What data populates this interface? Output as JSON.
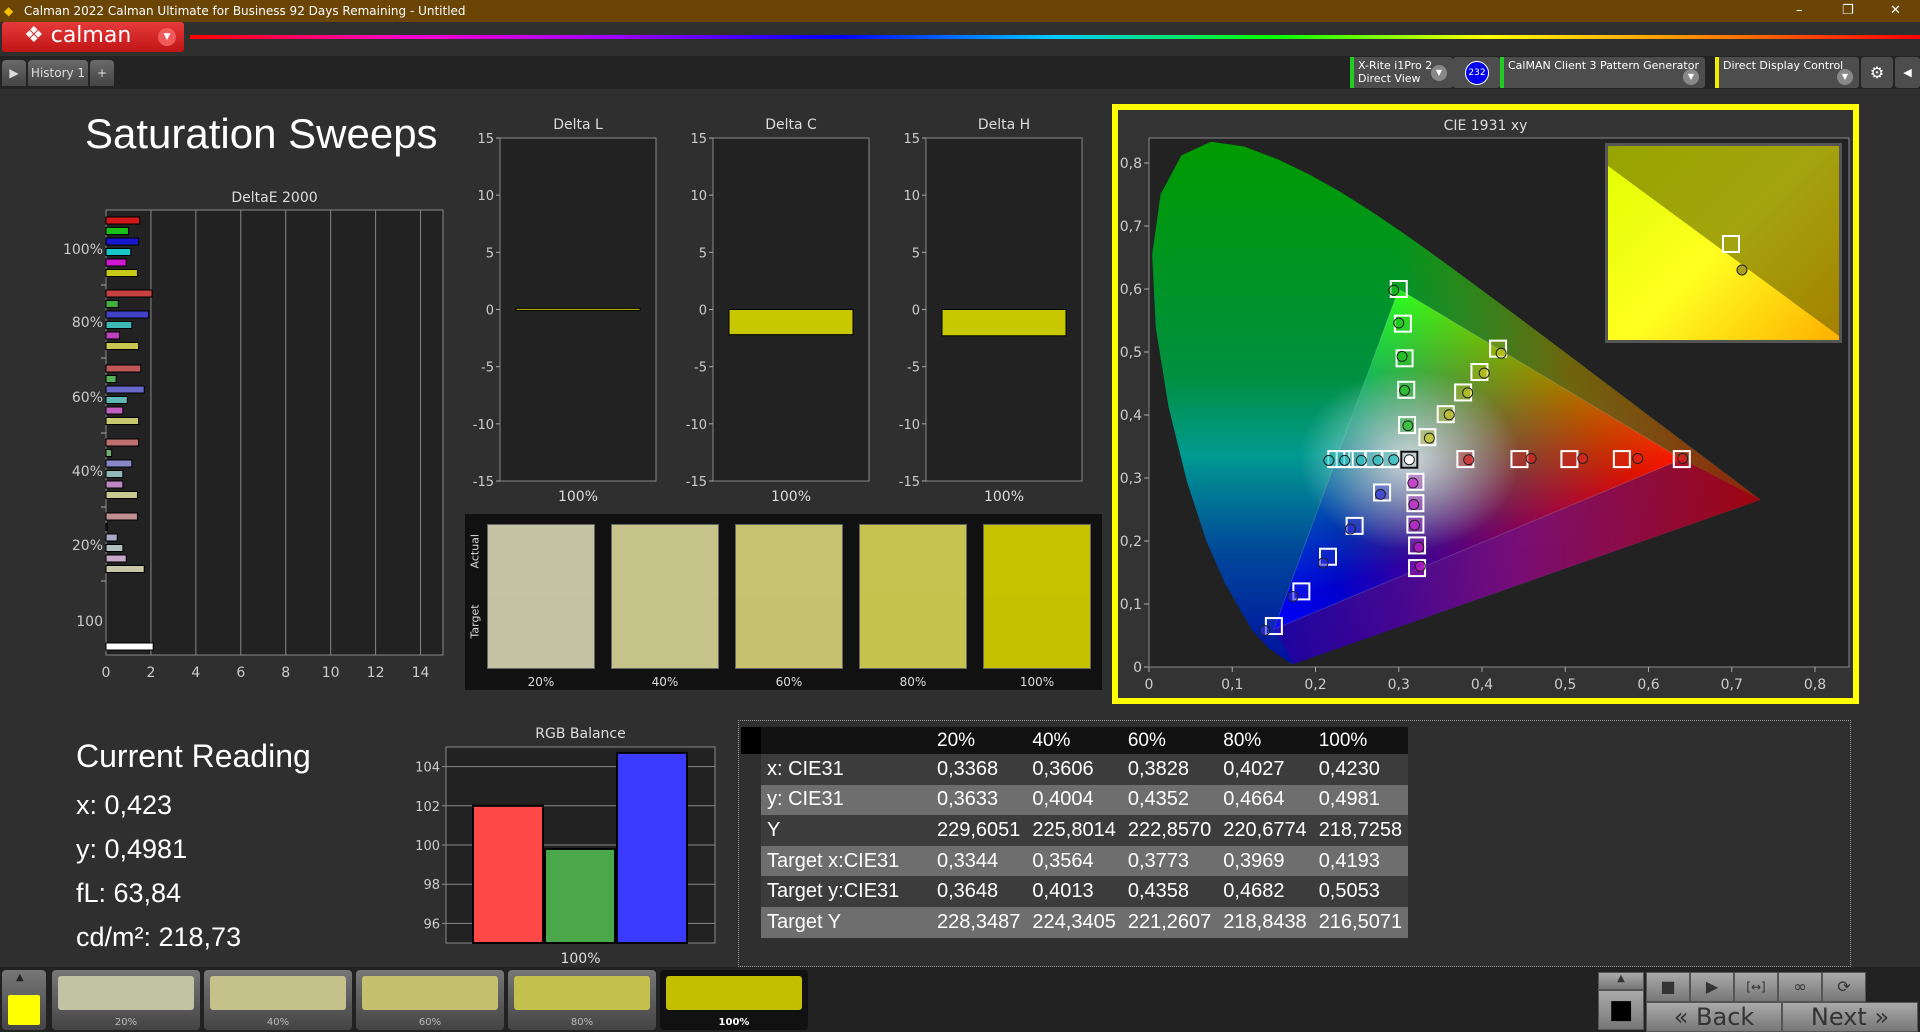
{
  "window": {
    "title": "Calman 2022 Calman Ultimate for Business 92 Days Remaining  - Untitled",
    "minimize": "–",
    "maximize": "❐",
    "close": "✕"
  },
  "logo": {
    "text": "calman"
  },
  "tabs": [
    {
      "label": "History 1"
    }
  ],
  "devices": {
    "meter": "X-Rite i1Pro 2",
    "meter_mode": "Direct View",
    "meter_badge": "232",
    "pattern": "CalMAN Client 3 Pattern Generator",
    "display": "Direct Display Control",
    "status_colors": {
      "meter": "#22cc22",
      "pattern": "#22cc22",
      "display": "#eeee00"
    }
  },
  "page_title": "Saturation Sweeps",
  "deltae_chart": {
    "title": "DeltaE 2000",
    "xlim": [
      0,
      15
    ],
    "xticks": [
      "0",
      "2",
      "4",
      "6",
      "8",
      "10",
      "12",
      "14"
    ],
    "groups": [
      {
        "label": "100%",
        "values": [
          1.5,
          1.0,
          1.45,
          1.1,
          0.9,
          1.4
        ],
        "colors": [
          "#d01818",
          "#18c018",
          "#1818d0",
          "#18c8c8",
          "#d018d0",
          "#c8c818"
        ]
      },
      {
        "label": "80%",
        "values": [
          2.05,
          0.55,
          1.9,
          1.15,
          0.6,
          1.45
        ],
        "colors": [
          "#c84040",
          "#40b040",
          "#4040c8",
          "#40b8b8",
          "#c040c0",
          "#c8c850"
        ]
      },
      {
        "label": "60%",
        "values": [
          1.55,
          0.45,
          1.7,
          0.95,
          0.75,
          1.45
        ],
        "colors": [
          "#c05858",
          "#58b058",
          "#6868c8",
          "#60b8b8",
          "#c060c0",
          "#c8c870"
        ]
      },
      {
        "label": "40%",
        "values": [
          1.45,
          0.25,
          1.15,
          0.75,
          0.75,
          1.4
        ],
        "colors": [
          "#c07070",
          "#70b070",
          "#8888c8",
          "#90b8b8",
          "#c088c0",
          "#c8c890"
        ]
      },
      {
        "label": "20%",
        "values": [
          1.4,
          0.05,
          0.5,
          0.75,
          0.9,
          1.7
        ],
        "colors": [
          "#c09090",
          "#90b090",
          "#a8a8c8",
          "#b0c0c0",
          "#c8a8c8",
          "#c8c8a8"
        ]
      },
      {
        "label": "100",
        "values": [
          2.1
        ],
        "colors": [
          "#ffffff"
        ]
      }
    ]
  },
  "delta_charts": [
    {
      "title": "Delta L",
      "value": 0.1,
      "category": "100%"
    },
    {
      "title": "Delta C",
      "value": -2.2,
      "category": "100%"
    },
    {
      "title": "Delta H",
      "value": -2.3,
      "category": "100%"
    }
  ],
  "delta_axis": {
    "ylim": [
      -15,
      15
    ],
    "yticks": [
      "15",
      "10",
      "5",
      "0",
      "-5",
      "-10",
      "-15"
    ],
    "bar_color": "#c8c800"
  },
  "swatches": {
    "actual_label": "Actual",
    "target_label": "Target",
    "items": [
      {
        "label": "20%",
        "actual": "#c4c3a4",
        "target": "#c3c2a3"
      },
      {
        "label": "40%",
        "actual": "#c6c38b",
        "target": "#c5c28a"
      },
      {
        "label": "60%",
        "actual": "#c6c270",
        "target": "#c5c16e"
      },
      {
        "label": "80%",
        "actual": "#c7c350",
        "target": "#c6c24e"
      },
      {
        "label": "100%",
        "actual": "#c6c200",
        "target": "#c5c100"
      }
    ]
  },
  "chart_data": {
    "type": "scatter",
    "title": "CIE 1931 xy",
    "xlim": [
      0,
      0.8
    ],
    "ylim": [
      0,
      0.8
    ],
    "xticks": [
      "0",
      "0,1",
      "0,2",
      "0,3",
      "0,4",
      "0,5",
      "0,6",
      "0,7",
      "0,8"
    ],
    "yticks": [
      "0",
      "0,1",
      "0,2",
      "0,3",
      "0,4",
      "0,5",
      "0,6",
      "0,7",
      "0,8"
    ],
    "gamut": {
      "red": [
        0.64,
        0.33
      ],
      "green": [
        0.3,
        0.6
      ],
      "blue": [
        0.15,
        0.06
      ],
      "white": [
        0.3127,
        0.329
      ]
    },
    "sweeps": [
      {
        "color": "#e02020",
        "targets": [
          [
            0.38,
            0.33
          ],
          [
            0.445,
            0.33
          ],
          [
            0.505,
            0.33
          ],
          [
            0.568,
            0.33
          ],
          [
            0.64,
            0.33
          ]
        ],
        "measured": [
          [
            0.384,
            0.329
          ],
          [
            0.459,
            0.331
          ],
          [
            0.521,
            0.331
          ],
          [
            0.587,
            0.331
          ],
          [
            0.641,
            0.331
          ]
        ]
      },
      {
        "color": "#20c020",
        "targets": [
          [
            0.31,
            0.384
          ],
          [
            0.309,
            0.44
          ],
          [
            0.307,
            0.49
          ],
          [
            0.305,
            0.545
          ],
          [
            0.3,
            0.6
          ]
        ],
        "measured": [
          [
            0.311,
            0.383
          ],
          [
            0.307,
            0.439
          ],
          [
            0.304,
            0.493
          ],
          [
            0.3,
            0.546
          ],
          [
            0.294,
            0.598
          ]
        ]
      },
      {
        "color": "#3030e0",
        "targets": [
          [
            0.28,
            0.277
          ],
          [
            0.247,
            0.224
          ],
          [
            0.215,
            0.175
          ],
          [
            0.183,
            0.12
          ],
          [
            0.15,
            0.065
          ]
        ],
        "measured": [
          [
            0.278,
            0.274
          ],
          [
            0.242,
            0.219
          ],
          [
            0.209,
            0.165
          ],
          [
            0.173,
            0.112
          ],
          [
            0.139,
            0.058
          ]
        ]
      },
      {
        "color": "#20c0c0",
        "targets": [
          [
            0.29,
            0.33
          ],
          [
            0.27,
            0.33
          ],
          [
            0.25,
            0.33
          ],
          [
            0.235,
            0.33
          ],
          [
            0.225,
            0.33
          ]
        ],
        "measured": [
          [
            0.294,
            0.329
          ],
          [
            0.275,
            0.328
          ],
          [
            0.255,
            0.328
          ],
          [
            0.235,
            0.328
          ],
          [
            0.216,
            0.328
          ]
        ]
      },
      {
        "color": "#d020d0",
        "targets": [
          [
            0.32,
            0.294
          ],
          [
            0.32,
            0.26
          ],
          [
            0.32,
            0.226
          ],
          [
            0.322,
            0.193
          ],
          [
            0.322,
            0.157
          ]
        ],
        "measured": [
          [
            0.317,
            0.292
          ],
          [
            0.318,
            0.258
          ],
          [
            0.319,
            0.225
          ],
          [
            0.324,
            0.19
          ],
          [
            0.326,
            0.16
          ]
        ]
      },
      {
        "color": "#c8c820",
        "targets": [
          [
            0.3344,
            0.3648
          ],
          [
            0.3564,
            0.4013
          ],
          [
            0.3773,
            0.4358
          ],
          [
            0.3969,
            0.4682
          ],
          [
            0.4193,
            0.5053
          ]
        ],
        "measured": [
          [
            0.3368,
            0.3633
          ],
          [
            0.3606,
            0.4004
          ],
          [
            0.3828,
            0.4352
          ],
          [
            0.4027,
            0.4664
          ],
          [
            0.423,
            0.4981
          ]
        ]
      }
    ]
  },
  "current_reading": {
    "title": "Current Reading",
    "x": "x: 0,423",
    "y": "y: 0,4981",
    "fl": "fL: 63,84",
    "cdm2": "cd/m²: 218,73"
  },
  "rgb_balance": {
    "title": "RGB Balance",
    "ylim": [
      95,
      105
    ],
    "yticks": [
      "104",
      "102",
      "100",
      "98",
      "96"
    ],
    "category": "100%",
    "values": {
      "red": 102.0,
      "green": 99.8,
      "blue": 104.7
    }
  },
  "table": {
    "columns": [
      "",
      "20%",
      "40%",
      "60%",
      "80%",
      "100%"
    ],
    "rows": [
      [
        "x: CIE31",
        "0,3368",
        "0,3606",
        "0,3828",
        "0,4027",
        "0,4230"
      ],
      [
        "y: CIE31",
        "0,3633",
        "0,4004",
        "0,4352",
        "0,4664",
        "0,4981"
      ],
      [
        "Y",
        "229,6051",
        "225,8014",
        "222,8570",
        "220,6774",
        "218,7258"
      ],
      [
        "Target x:CIE31",
        "0,3344",
        "0,3564",
        "0,3773",
        "0,3969",
        "0,4193"
      ],
      [
        "Target y:CIE31",
        "0,3648",
        "0,4013",
        "0,4358",
        "0,4682",
        "0,5053"
      ],
      [
        "Target Y",
        "228,3487",
        "224,3405",
        "221,2607",
        "218,8438",
        "216,5071"
      ]
    ]
  },
  "bottom": {
    "current_color": "#ffff00",
    "patches": [
      {
        "label": "20%",
        "color": "#c2c2a4"
      },
      {
        "label": "40%",
        "color": "#c4c28a"
      },
      {
        "label": "60%",
        "color": "#c4c06e"
      },
      {
        "label": "80%",
        "color": "#c4c04e"
      },
      {
        "label": "100%",
        "color": "#c4c000"
      }
    ],
    "back": "Back",
    "next": "Next"
  }
}
